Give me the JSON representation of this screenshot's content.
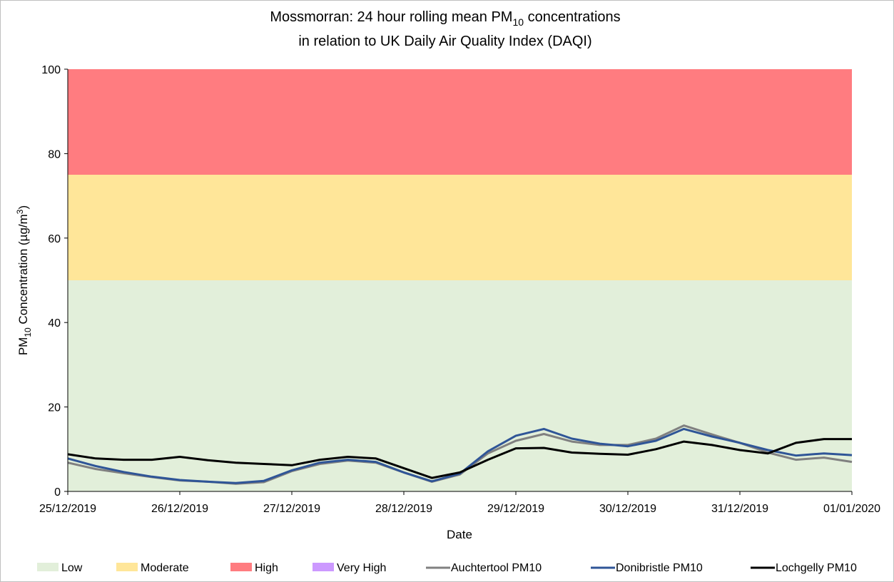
{
  "chart_data": {
    "type": "line",
    "title_lines": [
      [
        "Mossmorran: 24 hour rolling mean PM",
        "10",
        " concentrations"
      ],
      [
        "in relation to UK Daily Air Quality Index (DAQI)"
      ]
    ],
    "y_label": [
      "PM",
      "10",
      " Concentration (µg/m",
      "3",
      ")"
    ],
    "x_label": "Date",
    "xlim": [
      0,
      7
    ],
    "xticks": [
      {
        "value": 0,
        "label": "25/12/2019"
      },
      {
        "value": 1,
        "label": "26/12/2019"
      },
      {
        "value": 2,
        "label": "27/12/2019"
      },
      {
        "value": 3,
        "label": "28/12/2019"
      },
      {
        "value": 4,
        "label": "29/12/2019"
      },
      {
        "value": 5,
        "label": "30/12/2019"
      },
      {
        "value": 6,
        "label": "31/12/2019"
      },
      {
        "value": 7,
        "label": "01/01/2020"
      }
    ],
    "ylim": [
      0,
      100
    ],
    "yticks": [
      0,
      20,
      40,
      60,
      80,
      100
    ],
    "grid": false,
    "legend": "bottom",
    "bands": [
      {
        "name": "Low",
        "color": "#e2efda",
        "from": 0,
        "to": 50
      },
      {
        "name": "Moderate",
        "color": "#ffe699",
        "from": 50,
        "to": 75
      },
      {
        "name": "High",
        "color": "#ff7c80",
        "from": 75,
        "to": 100
      },
      {
        "name": "Very High",
        "color": "#cc99ff",
        "from": 100
      }
    ],
    "x": [
      0,
      0.25,
      0.5,
      0.75,
      1,
      1.25,
      1.5,
      1.75,
      2,
      2.25,
      2.5,
      2.75,
      3,
      3.25,
      3.5,
      3.75,
      4,
      4.25,
      4.5,
      4.75,
      5,
      5.25,
      5.5,
      5.75,
      6,
      6.25,
      6.5,
      6.75,
      7
    ],
    "series": [
      {
        "name": "Auchtertool PM10",
        "color": "#808080",
        "values": [
          6.8,
          5.3,
          4.3,
          3.4,
          2.6,
          2.3,
          1.8,
          2.2,
          4.8,
          6.5,
          7.3,
          6.8,
          4.5,
          2.3,
          4.0,
          9.0,
          12.0,
          13.6,
          11.8,
          11.0,
          11.0,
          12.5,
          15.6,
          13.5,
          11.5,
          9.2,
          7.5,
          8.0,
          7.0
        ]
      },
      {
        "name": "Donibristle PM10",
        "color": "#2f5597",
        "values": [
          7.8,
          6.0,
          4.6,
          3.5,
          2.7,
          2.3,
          2.0,
          2.5,
          5.0,
          6.8,
          7.5,
          7.0,
          4.5,
          2.4,
          4.2,
          9.5,
          13.2,
          14.8,
          12.5,
          11.3,
          10.7,
          12.0,
          14.8,
          13.0,
          11.5,
          9.8,
          8.5,
          9.0,
          8.6
        ]
      },
      {
        "name": "Lochgelly PM10",
        "color": "#000000",
        "values": [
          8.8,
          7.8,
          7.5,
          7.5,
          8.2,
          7.4,
          6.8,
          6.5,
          6.2,
          7.5,
          8.2,
          7.8,
          5.5,
          3.2,
          4.5,
          7.5,
          10.2,
          10.3,
          9.2,
          8.9,
          8.7,
          10.0,
          11.8,
          11.0,
          9.8,
          9.0,
          11.5,
          12.4,
          12.4
        ]
      }
    ]
  }
}
